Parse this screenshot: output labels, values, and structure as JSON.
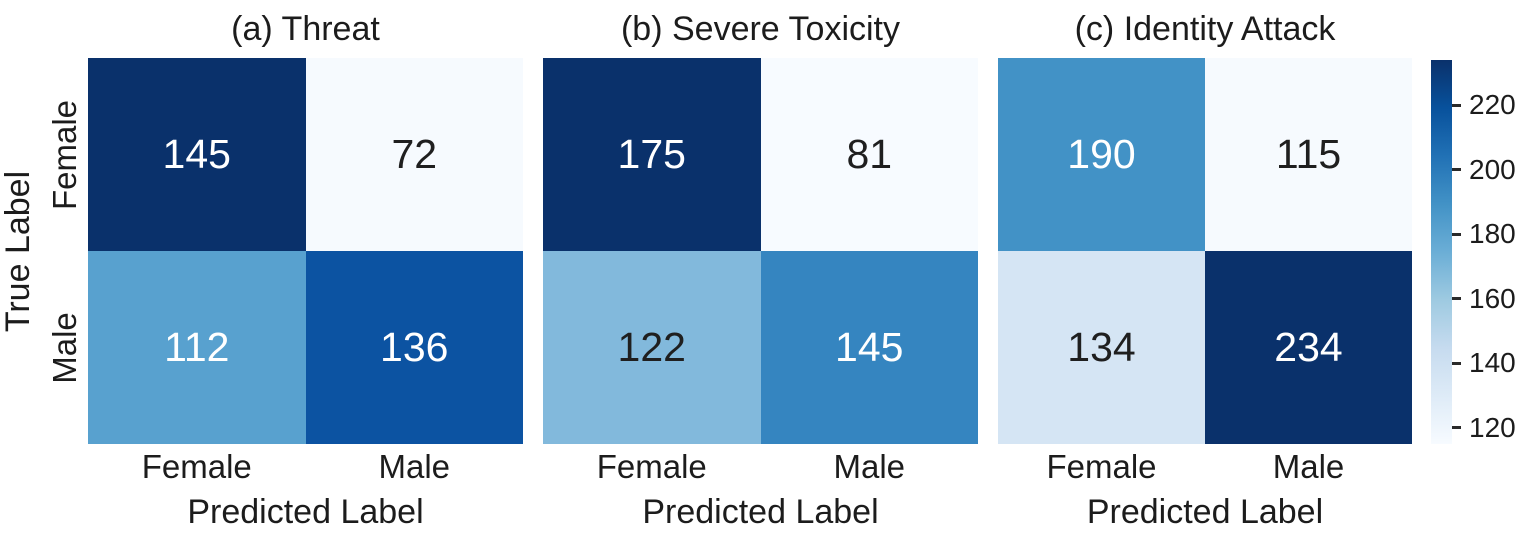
{
  "figure": {
    "background": "#ffffff",
    "text_color": "#1c1c1c",
    "y_axis_label": "True Label",
    "x_axis_label": "Predicted Label",
    "row_labels": [
      "Female",
      "Male"
    ],
    "col_labels": [
      "Female",
      "Male"
    ]
  },
  "chart_data": [
    {
      "type": "heatmap",
      "title": "(a) Threat",
      "x": [
        "Female",
        "Male"
      ],
      "y": [
        "Female",
        "Male"
      ],
      "xlabel": "Predicted Label",
      "ylabel": "True Label",
      "colormap": "Blues",
      "values": [
        [
          145,
          72
        ],
        [
          112,
          136
        ]
      ],
      "cell_colors": [
        [
          "#0a316b",
          "#f6fafe"
        ],
        [
          "#58a1cf",
          "#0c53a2"
        ]
      ],
      "value_text_colors": [
        [
          "#ffffff",
          "#1f1f1f"
        ],
        [
          "#ffffff",
          "#ffffff"
        ]
      ]
    },
    {
      "type": "heatmap",
      "title": "(b) Severe Toxicity",
      "x": [
        "Female",
        "Male"
      ],
      "y": [
        "Female",
        "Male"
      ],
      "xlabel": "Predicted Label",
      "ylabel": "True Label",
      "colormap": "Blues",
      "values": [
        [
          175,
          81
        ],
        [
          122,
          145
        ]
      ],
      "cell_colors": [
        [
          "#0a316b",
          "#f7fbff"
        ],
        [
          "#82b9dc",
          "#3585c0"
        ]
      ],
      "value_text_colors": [
        [
          "#ffffff",
          "#1f1f1f"
        ],
        [
          "#1f1f1f",
          "#ffffff"
        ]
      ]
    },
    {
      "type": "heatmap",
      "title": "(c) Identity Attack",
      "x": [
        "Female",
        "Male"
      ],
      "y": [
        "Female",
        "Male"
      ],
      "xlabel": "Predicted Label",
      "ylabel": "True Label",
      "colormap": "Blues",
      "values": [
        [
          190,
          115
        ],
        [
          134,
          234
        ]
      ],
      "cell_colors": [
        [
          "#4292c6",
          "#f6fafe"
        ],
        [
          "#d5e5f4",
          "#0a316b"
        ]
      ],
      "value_text_colors": [
        [
          "#ffffff",
          "#1f1f1f"
        ],
        [
          "#1f1f1f",
          "#ffffff"
        ]
      ]
    }
  ],
  "colorbar": {
    "vmin": 115,
    "vmax": 234,
    "ticks": [
      120,
      140,
      160,
      180,
      200,
      220
    ],
    "gradient_stops": [
      "#f7fbff",
      "#deebf7",
      "#c6dbef",
      "#9ecae1",
      "#6baed6",
      "#4292c6",
      "#2171b5",
      "#08519c",
      "#0a316b"
    ]
  }
}
